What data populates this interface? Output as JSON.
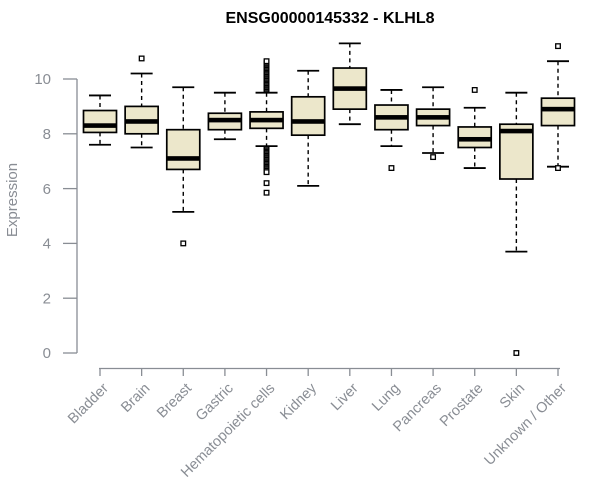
{
  "title": "ENSG00000145332 - KLHL8",
  "chart_data": {
    "type": "boxplot",
    "title": "ENSG00000145332 - KLHL8",
    "ylabel": "Expression",
    "xlabel": "",
    "ylim": [
      0,
      11.5
    ],
    "yticks": [
      0,
      2,
      4,
      6,
      8,
      10
    ],
    "grid": false,
    "legend": false,
    "categories": [
      "Bladder",
      "Brain",
      "Breast",
      "Gastric",
      "Hematopoietic cells",
      "Kidney",
      "Liver",
      "Lung",
      "Pancreas",
      "Prostate",
      "Skin",
      "Unknown / Other"
    ],
    "boxes": [
      {
        "category": "Bladder",
        "whisker_low": 7.6,
        "q1": 8.05,
        "median": 8.3,
        "q3": 8.85,
        "whisker_high": 9.4,
        "outliers": []
      },
      {
        "category": "Brain",
        "whisker_low": 7.5,
        "q1": 8.0,
        "median": 8.45,
        "q3": 9.0,
        "whisker_high": 10.2,
        "outliers": [
          10.75
        ]
      },
      {
        "category": "Breast",
        "whisker_low": 5.15,
        "q1": 6.7,
        "median": 7.1,
        "q3": 8.15,
        "whisker_high": 9.7,
        "outliers": [
          4.0
        ]
      },
      {
        "category": "Gastric",
        "whisker_low": 7.8,
        "q1": 8.15,
        "median": 8.5,
        "q3": 8.75,
        "whisker_high": 9.5,
        "outliers": []
      },
      {
        "category": "Hematopoietic cells",
        "whisker_low": 7.55,
        "q1": 8.2,
        "median": 8.5,
        "q3": 8.8,
        "whisker_high": 9.5,
        "outliers": [
          9.6,
          9.65,
          9.7,
          9.75,
          9.8,
          9.85,
          9.9,
          9.95,
          10.0,
          10.05,
          10.1,
          10.15,
          10.2,
          10.25,
          10.3,
          10.35,
          10.4,
          10.45,
          10.5,
          10.55,
          10.6,
          10.65,
          7.45,
          7.4,
          7.35,
          7.3,
          7.25,
          7.2,
          7.15,
          7.1,
          7.05,
          7.0,
          6.95,
          6.9,
          6.85,
          6.8,
          6.75,
          6.7,
          6.65,
          6.6,
          6.2,
          5.85
        ]
      },
      {
        "category": "Kidney",
        "whisker_low": 6.1,
        "q1": 7.95,
        "median": 8.45,
        "q3": 9.35,
        "whisker_high": 10.3,
        "outliers": []
      },
      {
        "category": "Liver",
        "whisker_low": 8.35,
        "q1": 8.9,
        "median": 9.65,
        "q3": 10.4,
        "whisker_high": 11.3,
        "outliers": []
      },
      {
        "category": "Lung",
        "whisker_low": 7.55,
        "q1": 8.15,
        "median": 8.6,
        "q3": 9.05,
        "whisker_high": 9.6,
        "outliers": [
          6.75
        ]
      },
      {
        "category": "Pancreas",
        "whisker_low": 7.3,
        "q1": 8.3,
        "median": 8.6,
        "q3": 8.9,
        "whisker_high": 9.7,
        "outliers": [
          7.15
        ]
      },
      {
        "category": "Prostate",
        "whisker_low": 6.75,
        "q1": 7.5,
        "median": 7.8,
        "q3": 8.25,
        "whisker_high": 8.95,
        "outliers": [
          9.6
        ]
      },
      {
        "category": "Skin",
        "whisker_low": 3.7,
        "q1": 6.35,
        "median": 8.1,
        "q3": 8.35,
        "whisker_high": 9.5,
        "outliers": [
          0.0
        ]
      },
      {
        "category": "Unknown / Other",
        "whisker_low": 6.8,
        "q1": 8.3,
        "median": 8.9,
        "q3": 9.3,
        "whisker_high": 10.65,
        "outliers": [
          11.2,
          6.75
        ]
      }
    ],
    "colors": {
      "box_fill": "#ece7cb",
      "box_stroke": "#000000",
      "median": "#000000",
      "whisker": "#000000",
      "outlier_stroke": "#000000",
      "outlier_fill": "#ffffff",
      "axis": "#898d94",
      "title": "#000000",
      "background": "#ffffff"
    }
  }
}
